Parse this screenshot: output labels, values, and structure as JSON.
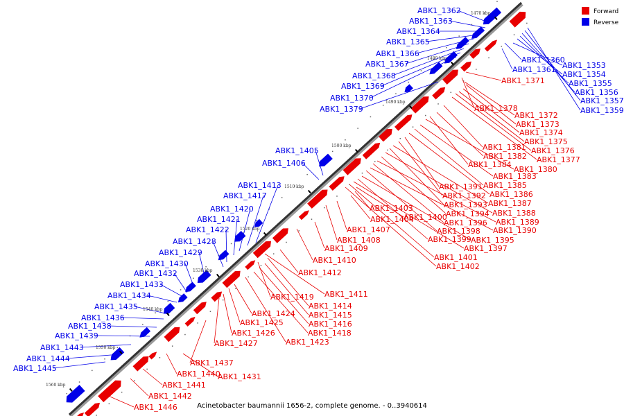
{
  "caption": "Acinetobacter baumannii 1656-2, complete genome. - 0..3940614",
  "legend": [
    {
      "label": "Forward",
      "color": "#e80000"
    },
    {
      "label": "Reverse",
      "color": "#0000e8"
    }
  ],
  "ticks": [
    "1470 kbp",
    "1480 kbp",
    "1490 kbp",
    "1500 kbp",
    "1510 kbp",
    "1520 kbp",
    "1530 kbp",
    "1540 kbp",
    "1550 kbp",
    "1560 kbp"
  ],
  "reverse_genes": [
    "ABK1_1362",
    "ABK1_1363",
    "ABK1_1364",
    "ABK1_1365",
    "ABK1_1366",
    "ABK1_1367",
    "ABK1_1368",
    "ABK1_1369",
    "ABK1_1370",
    "ABK1_1379",
    "ABK1_1405",
    "ABK1_1406",
    "ABK1_1413",
    "ABK1_1417",
    "ABK1_1420",
    "ABK1_1421",
    "ABK1_1422",
    "ABK1_1428",
    "ABK1_1429",
    "ABK1_1430",
    "ABK1_1432",
    "ABK1_1433",
    "ABK1_1434",
    "ABK1_1435",
    "ABK1_1436",
    "ABK1_1438",
    "ABK1_1439",
    "ABK1_1443",
    "ABK1_1444",
    "ABK1_1445",
    "ABK1_1360",
    "ABK1_1361",
    "ABK1_1353",
    "ABK1_1354",
    "ABK1_1355",
    "ABK1_1356",
    "ABK1_1357",
    "ABK1_1359"
  ],
  "forward_genes": [
    "ABK1_1371",
    "ABK1_1378",
    "ABK1_1372",
    "ABK1_1373",
    "ABK1_1374",
    "ABK1_1375",
    "ABK1_1376",
    "ABK1_1377",
    "ABK1_1381",
    "ABK1_1382",
    "ABK1_1384",
    "ABK1_1380",
    "ABK1_1383",
    "ABK1_1385",
    "ABK1_1391",
    "ABK1_1386",
    "ABK1_1392",
    "ABK1_1387",
    "ABK1_1393",
    "ABK1_1388",
    "ABK1_1394",
    "ABK1_1389",
    "ABK1_1396",
    "ABK1_1390",
    "ABK1_1398",
    "ABK1_1395",
    "ABK1_1399",
    "ABK1_1397",
    "ABK1_1401",
    "ABK1_1402",
    "ABK1_1403",
    "ABK1_1404",
    "ABK1_1400",
    "ABK1_1407",
    "ABK1_1408",
    "ABK1_1409",
    "ABK1_1410",
    "ABK1_1412",
    "ABK1_1411",
    "ABK1_1419",
    "ABK1_1414",
    "ABK1_1415",
    "ABK1_1416",
    "ABK1_1418",
    "ABK1_1423",
    "ABK1_1424",
    "ABK1_1425",
    "ABK1_1426",
    "ABK1_1427",
    "ABK1_1437",
    "ABK1_1431",
    "ABK1_1440",
    "ABK1_1441",
    "ABK1_1442",
    "ABK1_1446"
  ]
}
